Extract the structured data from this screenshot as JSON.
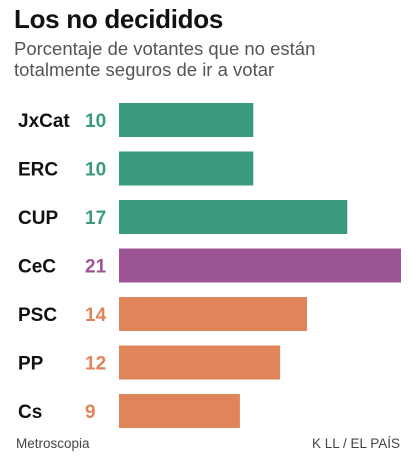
{
  "title": "Los no decididos",
  "subtitle": "Porcentaje de votantes que no están totalmente seguros de ir a votar",
  "source": "Metroscopia",
  "credit": "K LL / EL PAÍS",
  "chart_data": {
    "type": "bar",
    "orientation": "horizontal",
    "title": "Los no decididos",
    "subtitle": "Porcentaje de votantes que no están totalmente seguros de ir a votar",
    "categories": [
      "JxCat",
      "ERC",
      "CUP",
      "CeC",
      "PSC",
      "PP",
      "Cs"
    ],
    "values": [
      10,
      10,
      17,
      21,
      14,
      12,
      9
    ],
    "colors": [
      "#3a9a7e",
      "#3a9a7e",
      "#3a9a7e",
      "#9b5595",
      "#e0845a",
      "#e0845a",
      "#e0845a"
    ],
    "value_labels": [
      "10",
      "10",
      "17",
      "21",
      "14",
      "12",
      "9"
    ],
    "xlim": [
      0,
      21
    ],
    "grid": false,
    "legend": "none"
  }
}
